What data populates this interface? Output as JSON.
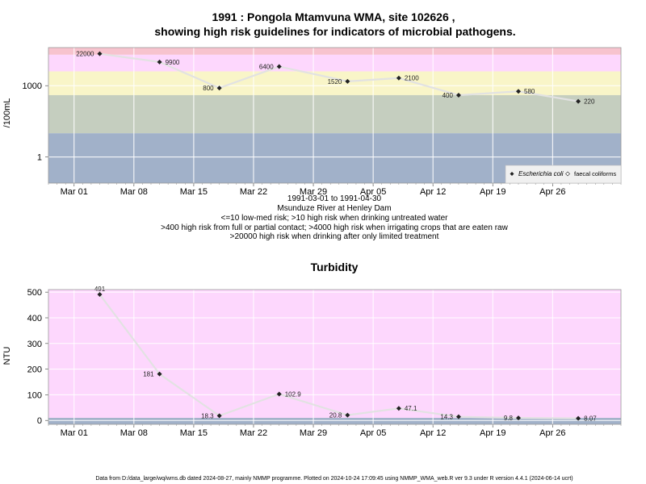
{
  "header": {
    "title_line1": "1991 : Pongola Mtamvuna WMA, site 102626 ,",
    "title_line2": "showing high risk guidelines for indicators of microbial pathogens."
  },
  "microbial": {
    "caption_lines": [
      "1991-03-01 to 1991-04-30",
      "Msunduze River at Henley Dam",
      "<=10 low-med risk; >10 high risk when drinking untreated water",
      ">400 high risk from full or partial contact; >4000 high risk when irrigating crops that are eaten raw",
      ">20000 high risk when drinking after only limited treatment"
    ],
    "legend": {
      "ecoli": "Escherichia coli",
      "faecal": "faecal coliforms"
    }
  },
  "turbidity": {
    "title": "Turbidity"
  },
  "footer": "Data from D:/data_large/wq/wms.db dated 2024-08-27, mainly NMMP programme. Plotted on 2024-10-24 17:09:45 using NMMP_WMA_web.R ver 9.3 under R version 4.4.1 (2024-06-14 ucrt)",
  "colors": {
    "band_red": "#f7c3ce",
    "band_pink": "#fdd7fd",
    "band_yellow": "#f9f5c8",
    "band_green": "#c5cebf",
    "band_blue": "#a1b1c9",
    "turb_bg": "#fdd7fd",
    "turb_low": "#a1b1c9",
    "line": "#e2e2e2",
    "point": "#222222"
  },
  "chart_data": [
    {
      "type": "line",
      "title": "1991 : Pongola Mtamvuna WMA, site 102626 , showing high risk guidelines for indicators of microbial pathogens.",
      "xlabel": "",
      "ylabel": "/100mL",
      "y_scale": "log10",
      "ylim": [
        0.08,
        40000
      ],
      "xlim": [
        "1991-02-26",
        "1991-05-04"
      ],
      "x_ticks": [
        "Mar 01",
        "Mar 08",
        "Mar 15",
        "Mar 22",
        "Mar 29",
        "Apr 05",
        "Apr 12",
        "Apr 19",
        "Apr 26"
      ],
      "y_ticks": [
        "1",
        "1000"
      ],
      "grid": true,
      "legend_position": "bottom-right",
      "thresholds": [
        10,
        400,
        4000,
        20000
      ],
      "series": [
        {
          "name": "Escherichia coli",
          "x": [
            "1991-03-04",
            "1991-03-11",
            "1991-03-18",
            "1991-03-25",
            "1991-04-02",
            "1991-04-08",
            "1991-04-15",
            "1991-04-22",
            "1991-04-29"
          ],
          "values": [
            22000,
            9900,
            800,
            6400,
            1520,
            2100,
            400,
            580,
            220
          ],
          "labels": [
            "22000",
            "9900",
            "800",
            "6400",
            "1520",
            "2100",
            "400",
            "580",
            "220"
          ]
        }
      ]
    },
    {
      "type": "line",
      "title": "Turbidity",
      "xlabel": "",
      "ylabel": "NTU",
      "ylim": [
        -15,
        510
      ],
      "xlim": [
        "1991-02-26",
        "1991-05-04"
      ],
      "x_ticks": [
        "Mar 01",
        "Mar 08",
        "Mar 15",
        "Mar 22",
        "Mar 29",
        "Apr 05",
        "Apr 12",
        "Apr 19",
        "Apr 26"
      ],
      "y_ticks": [
        0,
        100,
        200,
        300,
        400,
        500
      ],
      "grid": true,
      "series": [
        {
          "x": [
            "1991-03-04",
            "1991-03-11",
            "1991-03-18",
            "1991-03-25",
            "1991-04-02",
            "1991-04-08",
            "1991-04-15",
            "1991-04-22",
            "1991-04-29"
          ],
          "values": [
            491,
            181,
            18.3,
            102.9,
            20.8,
            47.1,
            14.3,
            9.8,
            8.07
          ],
          "labels": [
            "491",
            "181",
            "18.3",
            "102.9",
            "20.8",
            "47.1",
            "14.3",
            "9.8",
            "8.07"
          ]
        }
      ]
    }
  ]
}
